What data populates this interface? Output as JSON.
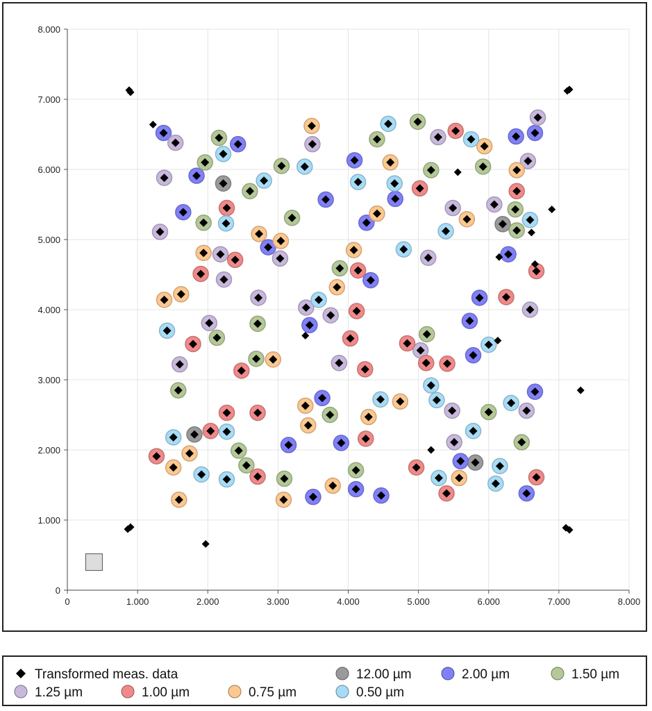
{
  "chart_data": {
    "type": "scatter",
    "title": "",
    "xlabel": "",
    "ylabel": "",
    "xlim": [
      0,
      8
    ],
    "ylim": [
      0,
      8
    ],
    "grid": true,
    "legend_placement": "bottom",
    "x_ticks": [
      "0",
      "1.000",
      "2.000",
      "3.000",
      "4.000",
      "5.000",
      "6.000",
      "7.000",
      "8.000"
    ],
    "y_ticks": [
      "0",
      "1.000",
      "2.000",
      "3.000",
      "4.000",
      "5.000",
      "6.000",
      "7.000",
      "8.000"
    ],
    "transformed": {
      "name": "Transformed meas. data",
      "color": "#000000",
      "marker": "diamond",
      "extra_points": [
        [
          0.88,
          7.13
        ],
        [
          0.9,
          7.1
        ],
        [
          1.22,
          6.64
        ],
        [
          1.97,
          0.66
        ],
        [
          0.86,
          0.87
        ],
        [
          0.9,
          0.9
        ],
        [
          7.12,
          7.12
        ],
        [
          7.15,
          7.14
        ],
        [
          7.1,
          0.89
        ],
        [
          7.15,
          0.86
        ],
        [
          5.56,
          5.96
        ],
        [
          6.9,
          5.43
        ],
        [
          6.15,
          4.75
        ],
        [
          6.61,
          5.1
        ],
        [
          6.66,
          4.65
        ],
        [
          6.13,
          3.56
        ],
        [
          3.39,
          3.63
        ],
        [
          5.18,
          2.0
        ],
        [
          7.31,
          2.85
        ]
      ]
    },
    "series": [
      {
        "name": "12.00 µm",
        "color": "#9a9a9a",
        "points": [
          [
            2.22,
            5.8
          ],
          [
            1.81,
            2.22
          ],
          [
            5.81,
            1.82
          ],
          [
            6.2,
            5.22
          ]
        ]
      },
      {
        "name": "2.00 µm",
        "color": "#8080f8",
        "points": [
          [
            1.37,
            6.52
          ],
          [
            2.43,
            6.36
          ],
          [
            1.84,
            5.91
          ],
          [
            3.68,
            5.57
          ],
          [
            1.65,
            5.39
          ],
          [
            2.86,
            4.89
          ],
          [
            3.15,
            2.07
          ],
          [
            3.5,
            1.33
          ],
          [
            3.63,
            2.74
          ],
          [
            3.9,
            2.1
          ],
          [
            4.11,
            1.44
          ],
          [
            4.47,
            1.35
          ],
          [
            5.6,
            1.84
          ],
          [
            6.66,
            2.83
          ],
          [
            6.54,
            1.38
          ],
          [
            3.45,
            3.78
          ],
          [
            4.32,
            4.42
          ],
          [
            5.78,
            3.35
          ],
          [
            5.73,
            3.84
          ],
          [
            5.87,
            4.17
          ],
          [
            6.28,
            4.79
          ],
          [
            6.39,
            6.47
          ],
          [
            6.66,
            6.52
          ],
          [
            4.67,
            5.58
          ],
          [
            4.09,
            6.13
          ],
          [
            4.26,
            5.24
          ]
        ]
      },
      {
        "name": "1.50 µm",
        "color": "#b4c898",
        "points": [
          [
            2.16,
            6.45
          ],
          [
            1.96,
            6.1
          ],
          [
            2.6,
            5.69
          ],
          [
            3.05,
            6.05
          ],
          [
            1.94,
            5.24
          ],
          [
            3.2,
            5.31
          ],
          [
            2.13,
            3.6
          ],
          [
            2.71,
            3.8
          ],
          [
            2.69,
            3.3
          ],
          [
            1.58,
            2.85
          ],
          [
            2.44,
            1.99
          ],
          [
            2.55,
            1.78
          ],
          [
            3.09,
            1.59
          ],
          [
            3.74,
            2.5
          ],
          [
            4.11,
            1.71
          ],
          [
            6.0,
            2.54
          ],
          [
            6.47,
            2.11
          ],
          [
            3.88,
            4.59
          ],
          [
            5.12,
            3.65
          ],
          [
            6.38,
            5.43
          ],
          [
            6.4,
            5.13
          ],
          [
            5.92,
            6.04
          ],
          [
            4.99,
            6.68
          ],
          [
            4.41,
            6.43
          ],
          [
            5.18,
            5.99
          ]
        ]
      },
      {
        "name": "1.25 µm",
        "color": "#c8b8dc",
        "points": [
          [
            1.54,
            6.38
          ],
          [
            3.49,
            6.36
          ],
          [
            1.38,
            5.88
          ],
          [
            1.32,
            5.11
          ],
          [
            3.03,
            4.73
          ],
          [
            2.18,
            4.79
          ],
          [
            2.23,
            4.43
          ],
          [
            2.72,
            4.17
          ],
          [
            2.02,
            3.81
          ],
          [
            1.6,
            3.22
          ],
          [
            5.51,
            2.11
          ],
          [
            5.48,
            2.56
          ],
          [
            6.54,
            2.56
          ],
          [
            3.87,
            3.24
          ],
          [
            3.75,
            3.92
          ],
          [
            3.4,
            4.03
          ],
          [
            5.03,
            3.42
          ],
          [
            6.59,
            4.0
          ],
          [
            5.14,
            4.74
          ],
          [
            5.49,
            5.45
          ],
          [
            6.08,
            5.5
          ],
          [
            6.56,
            6.12
          ],
          [
            6.7,
            6.74
          ],
          [
            5.28,
            6.46
          ]
        ]
      },
      {
        "name": "1.00 µm",
        "color": "#f08a8a",
        "points": [
          [
            2.27,
            5.45
          ],
          [
            2.39,
            4.71
          ],
          [
            1.9,
            4.51
          ],
          [
            1.79,
            3.51
          ],
          [
            2.48,
            3.13
          ],
          [
            2.04,
            2.27
          ],
          [
            2.27,
            2.53
          ],
          [
            2.71,
            2.53
          ],
          [
            1.27,
            1.91
          ],
          [
            2.71,
            1.62
          ],
          [
            4.25,
            2.16
          ],
          [
            4.97,
            1.75
          ],
          [
            5.4,
            1.38
          ],
          [
            6.68,
            1.61
          ],
          [
            4.24,
            3.15
          ],
          [
            4.14,
            4.56
          ],
          [
            4.12,
            3.98
          ],
          [
            4.03,
            3.59
          ],
          [
            4.84,
            3.52
          ],
          [
            5.11,
            3.24
          ],
          [
            5.41,
            3.23
          ],
          [
            6.25,
            4.18
          ],
          [
            6.68,
            4.55
          ],
          [
            6.4,
            5.69
          ],
          [
            5.53,
            6.55
          ],
          [
            5.02,
            5.73
          ]
        ]
      },
      {
        "name": "0.75 µm",
        "color": "#fcc890",
        "points": [
          [
            3.48,
            6.62
          ],
          [
            2.73,
            5.08
          ],
          [
            3.04,
            4.98
          ],
          [
            1.94,
            4.81
          ],
          [
            1.38,
            4.14
          ],
          [
            1.62,
            4.22
          ],
          [
            2.93,
            3.29
          ],
          [
            1.51,
            1.75
          ],
          [
            1.74,
            1.95
          ],
          [
            1.59,
            1.29
          ],
          [
            3.08,
            1.29
          ],
          [
            3.43,
            2.35
          ],
          [
            3.39,
            2.63
          ],
          [
            3.78,
            1.49
          ],
          [
            4.29,
            2.47
          ],
          [
            4.74,
            2.69
          ],
          [
            5.58,
            1.6
          ],
          [
            3.84,
            4.32
          ],
          [
            4.08,
            4.85
          ],
          [
            5.69,
            5.29
          ],
          [
            6.4,
            5.99
          ],
          [
            5.94,
            6.33
          ],
          [
            4.6,
            6.1
          ],
          [
            4.41,
            5.37
          ]
        ]
      },
      {
        "name": "0.50 µm",
        "color": "#a8dcf6",
        "points": [
          [
            2.22,
            6.22
          ],
          [
            2.8,
            5.84
          ],
          [
            3.38,
            6.04
          ],
          [
            2.26,
            5.23
          ],
          [
            1.42,
            3.7
          ],
          [
            1.51,
            2.18
          ],
          [
            2.27,
            2.26
          ],
          [
            1.91,
            1.65
          ],
          [
            2.27,
            1.58
          ],
          [
            4.46,
            2.72
          ],
          [
            5.29,
            1.6
          ],
          [
            5.78,
            2.27
          ],
          [
            5.26,
            2.71
          ],
          [
            5.18,
            2.92
          ],
          [
            6.32,
            2.67
          ],
          [
            6.16,
            1.77
          ],
          [
            6.1,
            1.52
          ],
          [
            3.58,
            4.14
          ],
          [
            6.0,
            3.5
          ],
          [
            4.79,
            4.86
          ],
          [
            5.39,
            5.12
          ],
          [
            6.59,
            5.28
          ],
          [
            5.75,
            6.43
          ],
          [
            4.57,
            6.65
          ],
          [
            4.66,
            5.8
          ],
          [
            4.14,
            5.82
          ]
        ]
      }
    ],
    "overview_box": {
      "x": 0.38,
      "y": 0.4,
      "color": "#dddddd"
    }
  },
  "legend": {
    "items": [
      {
        "label": "Transformed meas. data",
        "marker": "diamond"
      },
      {
        "label": "12.00 µm"
      },
      {
        "label": "2.00 µm"
      },
      {
        "label": "1.50 µm"
      },
      {
        "label": "1.25 µm"
      },
      {
        "label": "1.00 µm"
      },
      {
        "label": "0.75 µm"
      },
      {
        "label": "0.50 µm"
      }
    ]
  }
}
